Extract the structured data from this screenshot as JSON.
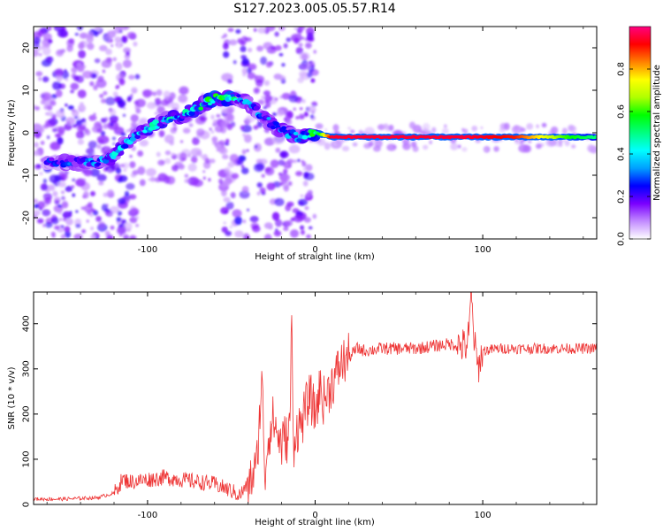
{
  "title": "S127.2023.005.05.57.R14",
  "chart_data": [
    {
      "type": "heatmap",
      "xlabel": "Height of straight line (km)",
      "ylabel": "Frequency (Hz)",
      "xlim": [
        -168,
        168
      ],
      "ylim": [
        -25,
        25
      ],
      "xticks": [
        -100,
        0,
        100
      ],
      "yticks": [
        -20,
        -10,
        0,
        10,
        20
      ],
      "colorbar": {
        "label": "Normalized spectral amplitude",
        "range": [
          0,
          1
        ],
        "ticks": [
          0.0,
          0.2,
          0.4,
          0.6,
          0.8
        ],
        "colors": [
          "#ffffff",
          "#c28bff",
          "#7a00ff",
          "#0000ff",
          "#00a0ff",
          "#00ffff",
          "#00ff80",
          "#00ff00",
          "#b0ff00",
          "#ffff00",
          "#ff8000",
          "#ff0000",
          "#ff0080"
        ]
      },
      "ridge": {
        "x": [
          -155,
          -140,
          -130,
          -122,
          -115,
          -108,
          -100,
          -90,
          -80,
          -70,
          -60,
          -52,
          -46,
          -40,
          -32,
          -22,
          -10,
          0,
          10,
          30,
          60,
          90,
          120,
          150,
          168
        ],
        "frequency": [
          -7,
          -7,
          -7,
          -6,
          -3,
          -1,
          1,
          3,
          4,
          6,
          8,
          8,
          8,
          7,
          4,
          1,
          -1,
          0,
          -1,
          -1,
          -1,
          -1,
          -1,
          -1,
          -1
        ],
        "amplitude": [
          0.2,
          0.25,
          0.3,
          0.35,
          0.3,
          0.3,
          0.35,
          0.35,
          0.35,
          0.4,
          0.45,
          0.55,
          0.3,
          0.3,
          0.25,
          0.25,
          0.3,
          0.45,
          0.95,
          0.95,
          0.95,
          0.95,
          0.9,
          0.6,
          0.5
        ]
      }
    },
    {
      "type": "line",
      "xlabel": "Height of straight line (km)",
      "ylabel": "SNR (10 * v/v)",
      "xlim": [
        -168,
        168
      ],
      "ylim": [
        0,
        470
      ],
      "xticks": [
        -100,
        0,
        100
      ],
      "yticks": [
        0,
        100,
        200,
        300,
        400
      ],
      "color": "#ee3333",
      "series": [
        {
          "x": [
            -168,
            -150,
            -130,
            -120,
            -115,
            -110,
            -100,
            -90,
            -80,
            -70,
            -60,
            -50,
            -45,
            -40,
            -35,
            -33,
            -32,
            -31,
            -30,
            -28,
            -25,
            -22,
            -20,
            -18,
            -16,
            -15,
            -14,
            -13,
            -12,
            -10,
            -8,
            -5,
            -3,
            0,
            3,
            5,
            8,
            10,
            12,
            15,
            20,
            25,
            30,
            40,
            50,
            60,
            70,
            80,
            90,
            92,
            93,
            95,
            97,
            100,
            110,
            120,
            130,
            140,
            150,
            160,
            168
          ],
          "y": [
            12,
            12,
            15,
            25,
            55,
            50,
            55,
            60,
            55,
            50,
            45,
            30,
            20,
            45,
            80,
            200,
            280,
            200,
            60,
            150,
            190,
            150,
            130,
            150,
            140,
            200,
            410,
            120,
            160,
            170,
            180,
            220,
            240,
            200,
            260,
            230,
            250,
            270,
            280,
            310,
            325,
            345,
            340,
            345,
            345,
            345,
            350,
            355,
            350,
            380,
            470,
            360,
            300,
            340,
            345,
            345,
            345,
            345,
            345,
            345,
            345
          ]
        }
      ]
    }
  ]
}
